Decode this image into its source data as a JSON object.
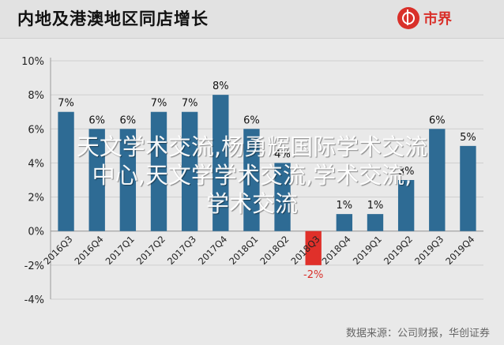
{
  "header": {
    "title": "内地及港澳地区同店增长",
    "logo_text": "市界",
    "logo_icon": "shijie-logo-icon",
    "brand_color": "#d9302a"
  },
  "chart_data": {
    "type": "bar",
    "categories": [
      "2016Q3",
      "2016Q4",
      "2017Q1",
      "2017Q2",
      "2017Q3",
      "2017Q4",
      "2018Q1",
      "2018Q2",
      "2018Q3",
      "2018Q4",
      "2019Q1",
      "2019Q2",
      "2019Q3",
      "2019Q4"
    ],
    "values": [
      7,
      6,
      6,
      7,
      7,
      8,
      6,
      4,
      -2,
      1,
      1,
      3,
      6,
      5
    ],
    "data_labels": [
      "7%",
      "6%",
      "6%",
      "7%",
      "7%",
      "8%",
      "6%",
      "4%",
      "-2%",
      "1%",
      "1%",
      "3%",
      "6%",
      "5%"
    ],
    "label_colors": [
      "#111111",
      "#111111",
      "#111111",
      "#111111",
      "#111111",
      "#111111",
      "#111111",
      "#111111",
      "#d9302a",
      "#111111",
      "#111111",
      "#111111",
      "#111111",
      "#111111"
    ],
    "ylim": [
      -4,
      10
    ],
    "yticks": [
      "-4%",
      "-2%",
      "0%",
      "2%",
      "4%",
      "6%",
      "8%",
      "10%"
    ],
    "ytick_values": [
      -4,
      -2,
      0,
      2,
      4,
      6,
      8,
      10
    ],
    "positive_color": "#2e6b94",
    "negative_color": "#e0302a",
    "grid": true
  },
  "source": "数据来源：公司财报，华创证券",
  "watermark": [
    "天文学术交流,杨勇辉国际学术交流",
    "中心,天文学学术交流,学术交流,",
    "学术交流"
  ]
}
